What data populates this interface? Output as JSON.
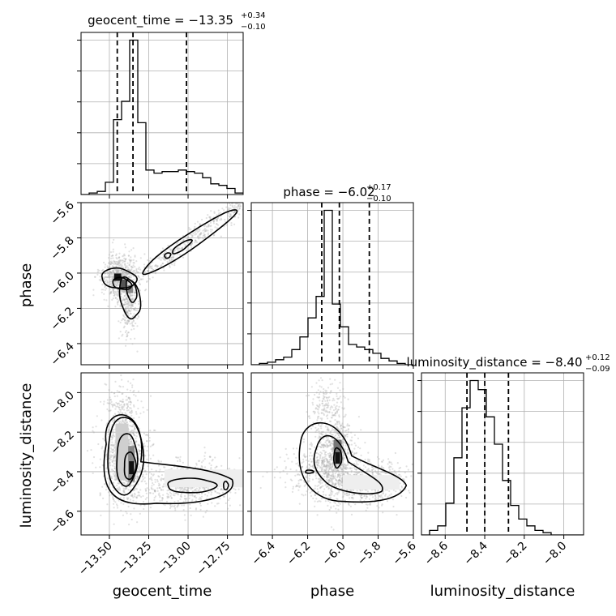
{
  "chart_data": {
    "type": "scatter",
    "subtype": "corner-plot",
    "parameters": [
      {
        "name": "geocent_time",
        "axis_label": "geocent_time",
        "title_prefix": "geocent_time = ",
        "median": "−13.35",
        "plus": "+0.34",
        "minus": "−0.10",
        "range": [
          -13.68,
          -12.65
        ],
        "ticks": [
          -13.5,
          -13.25,
          -13.0,
          -12.75
        ],
        "tick_labels": [
          "−13.50",
          "−13.25",
          "−13.00",
          "−12.75"
        ],
        "quantile_lines": [
          -13.45,
          -13.35,
          -13.01
        ],
        "hist_counts": [
          0,
          1,
          2,
          8,
          49,
          61,
          101,
          47,
          16,
          14,
          15,
          15,
          16,
          15,
          14,
          11,
          7,
          6,
          4,
          1
        ]
      },
      {
        "name": "phase",
        "axis_label": "phase",
        "title_prefix": "phase = ",
        "median": "−6.02",
        "plus": "+0.17",
        "minus": "−0.10",
        "range": [
          -6.52,
          -5.6
        ],
        "ticks": [
          -6.4,
          -6.2,
          -6.0,
          -5.8,
          -5.6
        ],
        "tick_labels": [
          "−6.4",
          "−6.2",
          "−6.0",
          "−5.8",
          "−5.6"
        ],
        "quantile_lines": [
          -6.12,
          -6.02,
          -5.85
        ],
        "hist_counts": [
          0,
          1,
          2,
          4,
          6,
          12,
          22,
          37,
          54,
          122,
          48,
          30,
          16,
          14,
          12,
          9,
          5,
          3,
          1,
          0
        ]
      },
      {
        "name": "luminosity_distance",
        "axis_label": "luminosity_distance",
        "title_prefix": "luminosity_distance = ",
        "median": "−8.40",
        "plus": "+0.12",
        "minus": "−0.09",
        "range": [
          -8.72,
          -7.9
        ],
        "ticks": [
          -8.6,
          -8.4,
          -8.2,
          -8.0
        ],
        "tick_labels": [
          "−8.6",
          "−8.4",
          "−8.2",
          "−8.0"
        ],
        "quantile_lines": [
          -8.49,
          -8.4,
          -8.28
        ],
        "hist_counts": [
          0,
          2,
          4,
          14,
          34,
          56,
          68,
          64,
          52,
          40,
          24,
          13,
          7,
          4,
          2,
          1,
          0,
          0,
          0,
          0
        ]
      }
    ],
    "hist_ylim_fraction": 1.05,
    "grid": true,
    "scatter_color": "#aaaaaa",
    "contour_color": "#000000",
    "line_color": "#000000"
  }
}
